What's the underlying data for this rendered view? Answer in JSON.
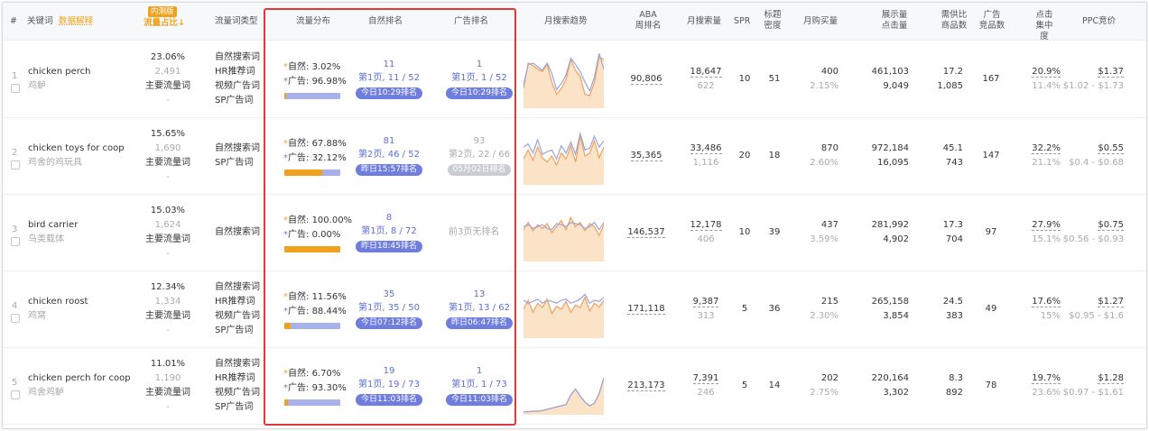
{
  "header": {
    "hash": "#",
    "keyword": "关键词",
    "data_explain": "数据解释",
    "badge_new": "内测版",
    "traffic_share": "流量占比",
    "traffic_type": "流量词类型",
    "traffic_dist": "流量分布",
    "natural_rank": "自然排名",
    "ad_rank": "广告排名",
    "monthly_trend": "月搜索趋势",
    "aba_rank_1": "ABA",
    "aba_rank_2": "周排名",
    "monthly_search": "月搜索量",
    "spr": "SPR",
    "title_density_1": "标题",
    "title_density_2": "密度",
    "monthly_purchase": "月购买量",
    "impressions_1": "展示量",
    "impressions_2": "点击量",
    "supply_demand_1": "需供比",
    "supply_demand_2": "商品数",
    "ad_products_1": "广告",
    "ad_products_2": "竞品数",
    "click_conc_1": "点击",
    "click_conc_2": "集中度",
    "ppc": "PPC竞价"
  },
  "rows": [
    {
      "idx": "1",
      "kw": "chicken perch",
      "kw_cn": "鸡鲈",
      "share": "23.06%",
      "share_sub": "2,491",
      "share_type": "主要流量词",
      "share_dash": "-",
      "types": [
        "自然搜索词",
        "HR推荐词",
        "视频广告词",
        "SP广告词"
      ],
      "nat_label": "自然:",
      "nat_pct": "3.02%",
      "ad_label": "广告:",
      "ad_pct": "96.98%",
      "org_frac": 0.0302,
      "nr_top": "11",
      "nr_mid": "第1页, 11 / 52",
      "nr_badge": "今日10:29排名",
      "nr_grey": false,
      "ar_top": "1",
      "ar_mid": "第1页, 1 / 52",
      "ar_badge": "今日10:29排名",
      "ar_grey": false,
      "ar_none": "",
      "aba": "90,806",
      "ms": "18,647",
      "ms_sub": "622",
      "spr": "10",
      "td": "51",
      "mp": "400",
      "mp_sub": "2.15%",
      "imp": "461,103",
      "clk": "9,049",
      "sd": "17.2",
      "sd_sub": "1,085",
      "adp": "167",
      "cc": "20.9%",
      "cc_sub": "11.4%",
      "ppc": "$1.37",
      "ppc_range": "$1.02 - $1.73",
      "trend_a": [
        30,
        72,
        68,
        62,
        58,
        70,
        40,
        20,
        30,
        45,
        78,
        60,
        50,
        20,
        18,
        40,
        82,
        78
      ],
      "trend_b": [
        35,
        70,
        72,
        66,
        60,
        72,
        55,
        28,
        38,
        52,
        80,
        70,
        58,
        40,
        26,
        48,
        88,
        62
      ]
    },
    {
      "idx": "2",
      "kw": "chicken toys for coop",
      "kw_cn": "鸡舍的鸡玩具",
      "share": "15.65%",
      "share_sub": "1,690",
      "share_type": "主要流量词",
      "share_dash": "-",
      "types": [
        "自然搜索词",
        "SP广告词"
      ],
      "nat_label": "自然:",
      "nat_pct": "67.88%",
      "ad_label": "广告:",
      "ad_pct": "32.12%",
      "org_frac": 0.6788,
      "nr_top": "81",
      "nr_mid": "第2页, 46 / 52",
      "nr_badge": "昨日15:57排名",
      "nr_grey": false,
      "ar_top": "93",
      "ar_mid": "第2页, 22 / 66",
      "ar_badge": "05月02日排名",
      "ar_grey": true,
      "ar_none": "",
      "aba": "35,365",
      "ms": "33,486",
      "ms_sub": "1,116",
      "spr": "20",
      "td": "18",
      "mp": "870",
      "mp_sub": "2.60%",
      "imp": "972,184",
      "clk": "16,095",
      "sd": "45.1",
      "sd_sub": "743",
      "adp": "147",
      "cc": "32.2%",
      "cc_sub": "21.1%",
      "ppc": "$0.55",
      "ppc_range": "$0.4 - $0.68",
      "trend_a": [
        40,
        55,
        38,
        60,
        42,
        35,
        45,
        30,
        50,
        40,
        62,
        35,
        78,
        45,
        50,
        70,
        42,
        60
      ],
      "trend_b": [
        60,
        65,
        50,
        72,
        48,
        52,
        55,
        40,
        62,
        50,
        68,
        48,
        82,
        55,
        58,
        78,
        60,
        70
      ]
    },
    {
      "idx": "3",
      "kw": "bird carrier",
      "kw_cn": "鸟类载体",
      "share": "15.03%",
      "share_sub": "1,624",
      "share_type": "主要流量词",
      "share_dash": "-",
      "types": [
        "自然搜索词"
      ],
      "nat_label": "自然:",
      "nat_pct": "100.00%",
      "ad_label": "广告:",
      "ad_pct": "0.00%",
      "org_frac": 1.0,
      "nr_top": "8",
      "nr_mid": "第1页, 8 / 72",
      "nr_badge": "昨日18:45排名",
      "nr_grey": false,
      "ar_top": "",
      "ar_mid": "",
      "ar_badge": "",
      "ar_grey": false,
      "ar_none": "前3页无排名",
      "aba": "146,537",
      "ms": "12,178",
      "ms_sub": "406",
      "spr": "10",
      "td": "39",
      "mp": "437",
      "mp_sub": "3.59%",
      "imp": "281,992",
      "clk": "4,902",
      "sd": "17.3",
      "sd_sub": "704",
      "adp": "97",
      "cc": "27.9%",
      "cc_sub": "15.1%",
      "ppc": "$0.75",
      "ppc_range": "$0.56 - $0.93",
      "trend_a": [
        50,
        62,
        48,
        58,
        52,
        60,
        45,
        55,
        65,
        50,
        70,
        55,
        62,
        48,
        60,
        55,
        40,
        58
      ],
      "trend_b": [
        55,
        58,
        52,
        55,
        58,
        52,
        50,
        60,
        58,
        55,
        62,
        60,
        58,
        52,
        55,
        62,
        50,
        62
      ]
    },
    {
      "idx": "4",
      "kw": "chicken roost",
      "kw_cn": "鸡窝",
      "share": "12.34%",
      "share_sub": "1,334",
      "share_type": "主要流量词",
      "share_dash": "-",
      "types": [
        "自然搜索词",
        "HR推荐词",
        "视频广告词",
        "SP广告词"
      ],
      "nat_label": "自然:",
      "nat_pct": "11.56%",
      "ad_label": "广告:",
      "ad_pct": "88.44%",
      "org_frac": 0.1156,
      "nr_top": "35",
      "nr_mid": "第1页, 35 / 50",
      "nr_badge": "今日07:12排名",
      "nr_grey": false,
      "ar_top": "13",
      "ar_mid": "第1页, 13 / 62",
      "ar_badge": "昨日06:47排名",
      "ar_grey": false,
      "ar_none": "",
      "aba": "171,118",
      "ms": "9,387",
      "ms_sub": "313",
      "spr": "5",
      "td": "36",
      "mp": "215",
      "mp_sub": "2.30%",
      "imp": "265,158",
      "clk": "3,854",
      "sd": "24.5",
      "sd_sub": "383",
      "adp": "49",
      "cc": "17.6%",
      "cc_sub": "15%",
      "ppc": "$1.27",
      "ppc_range": "$0.95 - $1.6",
      "trend_a": [
        45,
        60,
        40,
        55,
        48,
        62,
        38,
        50,
        45,
        58,
        40,
        52,
        48,
        65,
        42,
        55,
        48,
        60
      ],
      "trend_b": [
        60,
        55,
        58,
        62,
        55,
        60,
        58,
        55,
        60,
        62,
        55,
        58,
        62,
        70,
        55,
        60,
        58,
        65
      ]
    },
    {
      "idx": "5",
      "kw": "chicken perch for coop",
      "kw_cn": "鸡舍鸡鲈",
      "share": "11.01%",
      "share_sub": "1,190",
      "share_type": "主要流量词",
      "share_dash": "-",
      "types": [
        "自然搜索词",
        "HR推荐词",
        "视频广告词",
        "SP广告词"
      ],
      "nat_label": "自然:",
      "nat_pct": "6.70%",
      "ad_label": "广告:",
      "ad_pct": "93.30%",
      "org_frac": 0.067,
      "nr_top": "19",
      "nr_mid": "第1页, 19 / 73",
      "nr_badge": "今日11:03排名",
      "nr_grey": false,
      "ar_top": "1",
      "ar_mid": "第1页, 1 / 73",
      "ar_badge": "今日11:03排名",
      "ar_grey": false,
      "ar_none": "",
      "aba": "213,173",
      "ms": "7,391",
      "ms_sub": "246",
      "spr": "5",
      "td": "14",
      "mp": "202",
      "mp_sub": "2.75%",
      "imp": "220,164",
      "clk": "3,302",
      "sd": "8.3",
      "sd_sub": "892",
      "adp": "78",
      "cc": "19.7%",
      "cc_sub": "23.6%",
      "ppc": "$1.28",
      "ppc_range": "$0.97 - $1.61",
      "trend_a": [
        2,
        2,
        3,
        3,
        4,
        6,
        8,
        10,
        12,
        14,
        30,
        40,
        28,
        18,
        12,
        16,
        32,
        58
      ],
      "trend_b": [
        2,
        2,
        3,
        3,
        4,
        6,
        8,
        10,
        12,
        14,
        30,
        40,
        28,
        18,
        12,
        16,
        32,
        58
      ]
    }
  ],
  "colors": {
    "accent": "#5b6fd6",
    "orange": "#f0a21e",
    "red_box": "#e0383b",
    "badge": "#6f7ddc"
  }
}
